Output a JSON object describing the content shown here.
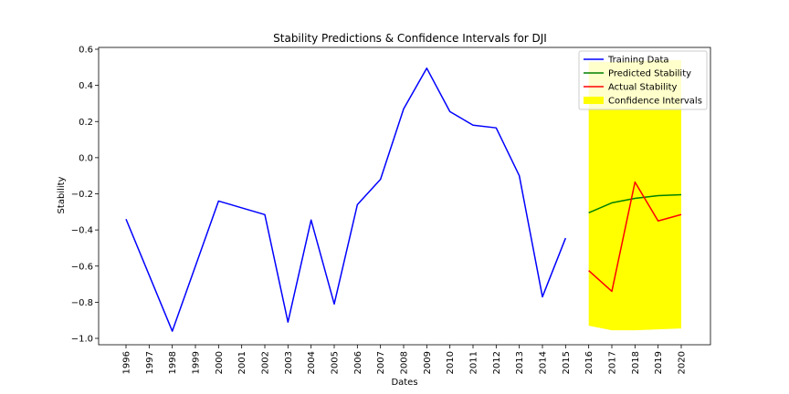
{
  "chart_data": {
    "type": "line",
    "title": "Stability Predictions & Confidence Intervals for DJI",
    "xlabel": "Dates",
    "ylabel": "Stability",
    "x_categories": [
      "1996",
      "1997",
      "1998",
      "1999",
      "2000",
      "2001",
      "2002",
      "2003",
      "2004",
      "2005",
      "2006",
      "2007",
      "2008",
      "2009",
      "2010",
      "2011",
      "2012",
      "2013",
      "2014",
      "2015",
      "2016",
      "2017",
      "2018",
      "2019",
      "2020"
    ],
    "ylim": [
      -1.03,
      0.61
    ],
    "yticks": [
      -1.0,
      -0.8,
      -0.6,
      -0.4,
      -0.2,
      0.0,
      0.2,
      0.4,
      0.6
    ],
    "ytick_labels": [
      "−1.0",
      "−0.8",
      "−0.6",
      "−0.4",
      "−0.2",
      "0.0",
      "0.2",
      "0.4",
      "0.6"
    ],
    "legend_position": "top-right",
    "series": [
      {
        "name": "Training Data",
        "color": "#0000ff",
        "x": [
          "1996",
          "1998",
          "2000",
          "2002",
          "2003",
          "2004",
          "2005",
          "2006",
          "2007",
          "2008",
          "2009",
          "2010",
          "2011",
          "2012",
          "2013",
          "2014",
          "2015"
        ],
        "y": [
          -0.34,
          -0.96,
          -0.24,
          -0.315,
          -0.91,
          -0.345,
          -0.81,
          -0.26,
          -0.12,
          0.27,
          0.495,
          0.255,
          0.18,
          0.165,
          -0.1,
          -0.77,
          -0.445
        ]
      },
      {
        "name": "Predicted Stability",
        "color": "#008000",
        "x": [
          "2016",
          "2017",
          "2018",
          "2019",
          "2020"
        ],
        "y": [
          -0.305,
          -0.25,
          -0.225,
          -0.21,
          -0.205
        ]
      },
      {
        "name": "Actual Stability",
        "color": "#ff0000",
        "x": [
          "2016",
          "2017",
          "2018",
          "2019",
          "2020"
        ],
        "y": [
          -0.625,
          -0.74,
          -0.135,
          -0.35,
          -0.315
        ]
      }
    ],
    "confidence_interval": {
      "name": "Confidence Intervals",
      "color": "#ffff00",
      "x": [
        "2016",
        "2017",
        "2018",
        "2019",
        "2020"
      ],
      "lower": [
        -0.93,
        -0.955,
        -0.955,
        -0.95,
        -0.945
      ],
      "upper": [
        0.53,
        0.53,
        0.535,
        0.54,
        0.54
      ]
    }
  }
}
